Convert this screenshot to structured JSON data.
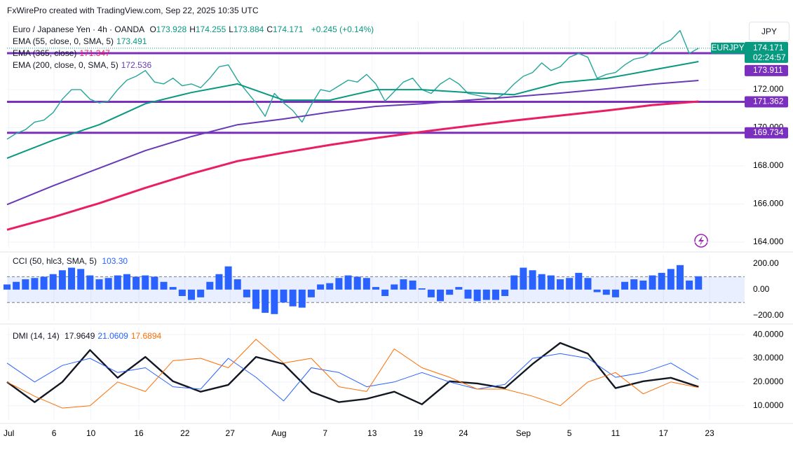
{
  "header": {
    "attribution": "FxWirePro created with TradingView.com, Sep 22, 2025 10:35 UTC"
  },
  "currency": "JPY",
  "chart_data": [
    {
      "type": "line",
      "title": "Euro / Japanese Yen · 4h · OANDA",
      "ohlc": [
        {
          "label": "O",
          "value": 173.928
        },
        {
          "label": "H",
          "value": 174.255
        },
        {
          "label": "L",
          "value": 173.884
        },
        {
          "label": "C",
          "value": 174.171
        }
      ],
      "change": "+0.245 (+0.14%)",
      "symbol": "EURJPY",
      "countdown": "02:24:57",
      "last_price": 174.171,
      "price_color": "#089981",
      "xlim": [
        0,
        80
      ],
      "ylim": [
        163.67,
        175.6
      ],
      "yticks": [
        {
          "value": 164,
          "label": "164.000"
        },
        {
          "value": 166,
          "label": "166.000"
        },
        {
          "value": 168,
          "label": "168.000"
        },
        {
          "value": 170,
          "label": "170.000"
        },
        {
          "value": 172,
          "label": "172.000"
        }
      ],
      "grid": true,
      "levels": [
        173.911,
        171.362,
        169.734
      ],
      "level_color": "#7b2fbe",
      "series": [
        {
          "color": "#26a69a",
          "width": 1.4,
          "x": [
            0,
            1,
            2,
            3,
            4,
            5,
            6,
            7,
            8,
            9,
            10,
            11,
            12,
            13,
            14,
            15,
            16,
            17,
            18,
            19,
            20,
            21,
            22,
            23,
            24,
            25,
            26,
            27,
            28,
            29,
            30,
            31,
            32,
            33,
            34,
            35,
            36,
            37,
            38,
            39,
            40,
            41,
            42,
            43,
            44,
            45,
            46,
            47,
            48,
            49,
            50,
            51,
            52,
            53,
            54,
            55,
            56,
            57,
            58,
            59,
            60,
            61,
            62,
            63,
            64,
            65,
            66,
            67,
            68,
            69,
            70,
            71,
            72,
            73,
            74,
            75
          ],
          "values": [
            169.4,
            169.7,
            169.9,
            170.3,
            170.4,
            170.8,
            171.5,
            172.0,
            172.0,
            171.5,
            171.3,
            171.4,
            172.0,
            172.5,
            172.7,
            173.0,
            172.4,
            172.3,
            172.6,
            172.2,
            172.3,
            172.1,
            172.6,
            173.2,
            173.3,
            172.5,
            171.9,
            171.3,
            170.6,
            171.8,
            171.3,
            170.9,
            170.3,
            171.2,
            172.0,
            171.9,
            172.2,
            172.5,
            172.4,
            172.8,
            172.3,
            171.4,
            171.9,
            172.4,
            172.6,
            172.0,
            171.8,
            172.3,
            172.6,
            172.3,
            171.8,
            171.7,
            171.6,
            171.5,
            171.8,
            172.3,
            172.7,
            172.9,
            173.4,
            173.0,
            173.2,
            173.7,
            173.9,
            173.7,
            172.6,
            172.8,
            172.9,
            173.3,
            173.6,
            173.7,
            174.0,
            174.4,
            174.6,
            175.1,
            173.9,
            174.171
          ]
        },
        {
          "name": "EMA (55, close, 0, SMA, 5)",
          "last": 173.491,
          "color": "#089981",
          "width": 2,
          "x": [
            0,
            5,
            10,
            15,
            20,
            25,
            30,
            35,
            40,
            45,
            50,
            55,
            60,
            65,
            70,
            75
          ],
          "values": [
            168.4,
            169.35,
            170.16,
            171.26,
            171.85,
            172.3,
            171.45,
            171.45,
            172.0,
            172.0,
            171.85,
            171.74,
            172.37,
            172.59,
            173.03,
            173.47
          ]
        },
        {
          "name": "EMA (365, close)",
          "last": 171.347,
          "color": "#e91e63",
          "width": 3,
          "x": [
            0,
            5,
            10,
            15,
            20,
            25,
            30,
            35,
            40,
            45,
            50,
            55,
            60,
            65,
            70,
            75
          ],
          "values": [
            164.65,
            165.31,
            166.04,
            166.85,
            167.59,
            168.25,
            168.69,
            169.1,
            169.46,
            169.79,
            170.09,
            170.38,
            170.64,
            170.9,
            171.19,
            171.38
          ]
        },
        {
          "name": "EMA (200, close, 0, SMA, 5)",
          "last": 172.536,
          "color": "#673ab7",
          "width": 2,
          "x": [
            0,
            5,
            10,
            15,
            20,
            25,
            30,
            35,
            40,
            45,
            50,
            55,
            60,
            65,
            70,
            75
          ],
          "values": [
            165.97,
            166.96,
            167.88,
            168.8,
            169.54,
            170.16,
            170.46,
            170.82,
            171.12,
            171.26,
            171.45,
            171.63,
            171.82,
            172.04,
            172.29,
            172.48
          ]
        }
      ]
    },
    {
      "type": "bar",
      "title": "CCI (50, hlc3, SMA, 5)",
      "last": {
        "value": 103.3,
        "label": "103.30"
      },
      "color": "#2962ff",
      "band": [
        -100,
        100
      ],
      "xlim": [
        0,
        80
      ],
      "ylim": [
        -240,
        265
      ],
      "yticks": [
        {
          "value": 200,
          "label": "200.00"
        },
        {
          "value": 0,
          "label": "0.00"
        },
        {
          "value": -200,
          "label": "−200.00"
        }
      ],
      "x": [
        0,
        1,
        2,
        3,
        4,
        5,
        6,
        7,
        8,
        9,
        10,
        11,
        12,
        13,
        14,
        15,
        16,
        17,
        18,
        19,
        20,
        21,
        22,
        23,
        24,
        25,
        26,
        27,
        28,
        29,
        30,
        31,
        32,
        33,
        34,
        35,
        36,
        37,
        38,
        39,
        40,
        41,
        42,
        43,
        44,
        45,
        46,
        47,
        48,
        49,
        50,
        51,
        52,
        53,
        54,
        55,
        56,
        57,
        58,
        59,
        60,
        61,
        62,
        63,
        64,
        65,
        66,
        67,
        68,
        69,
        70,
        71,
        72,
        73,
        74,
        75
      ],
      "values": [
        40,
        60,
        80,
        90,
        100,
        120,
        150,
        170,
        160,
        110,
        80,
        90,
        110,
        120,
        100,
        110,
        100,
        60,
        20,
        -50,
        -80,
        -60,
        60,
        120,
        180,
        80,
        -60,
        -150,
        -180,
        -190,
        -100,
        -130,
        -140,
        -60,
        40,
        50,
        90,
        110,
        100,
        90,
        20,
        -50,
        40,
        80,
        70,
        10,
        -60,
        -90,
        -40,
        20,
        -70,
        -90,
        -80,
        -80,
        -50,
        110,
        170,
        150,
        120,
        110,
        80,
        90,
        130,
        90,
        -20,
        -40,
        -60,
        60,
        80,
        70,
        110,
        130,
        160,
        190,
        70,
        103.3
      ]
    },
    {
      "type": "line",
      "title": "DMI (14, 14)",
      "xlim": [
        0,
        80
      ],
      "ylim": [
        4,
        43
      ],
      "yticks": [
        {
          "value": 40,
          "label": "40.0000"
        },
        {
          "value": 30,
          "label": "30.0000"
        },
        {
          "value": 20,
          "label": "20.0000"
        },
        {
          "value": 10,
          "label": "10.0000"
        }
      ],
      "grid": true,
      "xticks": [
        {
          "value": 0.2,
          "label": "Jul"
        },
        {
          "value": 5.1,
          "label": "6"
        },
        {
          "value": 9.1,
          "label": "10"
        },
        {
          "value": 14.3,
          "label": "16"
        },
        {
          "value": 19.3,
          "label": "22"
        },
        {
          "value": 24.2,
          "label": "27"
        },
        {
          "value": 29.5,
          "label": "Aug"
        },
        {
          "value": 34.5,
          "label": "7"
        },
        {
          "value": 39.6,
          "label": "13"
        },
        {
          "value": 44.6,
          "label": "19"
        },
        {
          "value": 49.5,
          "label": "24"
        },
        {
          "value": 56,
          "label": "Sep"
        },
        {
          "value": 61,
          "label": "5"
        },
        {
          "value": 66,
          "label": "11"
        },
        {
          "value": 71.2,
          "label": "17"
        },
        {
          "value": 76.2,
          "label": "23"
        }
      ],
      "series": [
        {
          "last": 17.9649,
          "color": "#131722",
          "width": 2.4,
          "x": [
            0,
            3,
            6,
            9,
            12,
            15,
            18,
            21,
            24,
            27,
            30,
            33,
            36,
            39,
            42,
            45,
            48,
            51,
            54,
            57,
            60,
            63,
            66,
            69,
            72,
            75
          ],
          "values": [
            20,
            11.5,
            20,
            33.5,
            21.8,
            30.6,
            20.3,
            15.9,
            18.8,
            30.6,
            27.6,
            15.9,
            11.5,
            12.9,
            15.9,
            10.6,
            20.3,
            19.4,
            17.4,
            27.6,
            36.5,
            32,
            17.4,
            20.3,
            21.8,
            17.9649
          ]
        },
        {
          "last": 21.0609,
          "color": "#2962ff",
          "width": 1,
          "x": [
            0,
            3,
            6,
            9,
            12,
            15,
            18,
            21,
            24,
            27,
            30,
            33,
            36,
            39,
            42,
            45,
            48,
            51,
            54,
            57,
            60,
            63,
            66,
            69,
            72,
            75
          ],
          "values": [
            28,
            20,
            27,
            30,
            24,
            26,
            18,
            17,
            30,
            22,
            12,
            26,
            24,
            18,
            20,
            24,
            20,
            17,
            19,
            30,
            32,
            30,
            22,
            24,
            28,
            21.0609
          ]
        },
        {
          "last": 17.6894,
          "color": "#ff6d00",
          "width": 1,
          "x": [
            0,
            3,
            6,
            9,
            12,
            15,
            18,
            21,
            24,
            27,
            30,
            33,
            36,
            39,
            42,
            45,
            48,
            51,
            54,
            57,
            60,
            63,
            66,
            69,
            72,
            75
          ],
          "values": [
            20,
            14,
            9,
            10,
            20,
            16,
            29,
            30,
            26,
            38,
            28,
            30,
            18,
            16,
            34,
            26,
            22,
            17,
            17,
            14,
            10,
            20,
            24,
            15,
            20,
            17.6894
          ]
        }
      ]
    }
  ]
}
